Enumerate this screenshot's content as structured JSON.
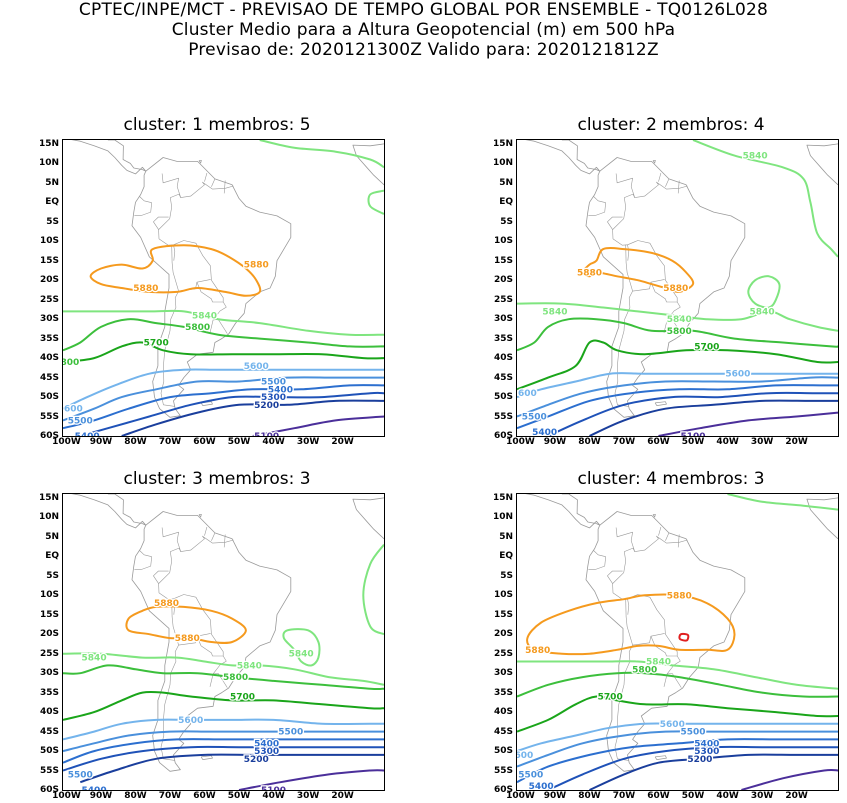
{
  "header": {
    "line1": "CPTEC/INPE/MCT - PREVISAO DE TEMPO GLOBAL POR ENSEMBLE - TQ0126L028",
    "line2": "Cluster Medio para a Altura Geopotencial (m) em 500 hPa",
    "line3": "Previsao de: 2020121300Z    Valido para: 2020121812Z"
  },
  "axes": {
    "lat_labels": [
      "15N",
      "10N",
      "5N",
      "EQ",
      "5S",
      "10S",
      "15S",
      "20S",
      "25S",
      "30S",
      "35S",
      "40S",
      "45S",
      "50S",
      "55S",
      "60S"
    ],
    "lon_labels": [
      "100W",
      "90W",
      "80W",
      "70W",
      "60W",
      "50W",
      "40W",
      "30W",
      "20W"
    ]
  },
  "colors": {
    "c5880": "#f59a1e",
    "c5840": "#7fe57f",
    "c5800": "#3cbf3c",
    "c5700": "#1aa51a",
    "c5600": "#74b4ec",
    "c5500": "#4a90dc",
    "c5400": "#2c6fcf",
    "c5300": "#1f52b8",
    "c5200": "#1a3e9c",
    "c5100": "#4b2f9a",
    "c5920": "#e02020",
    "land": "#9a9a9a"
  },
  "panels": [
    {
      "title": "cluster:  1   membros:  5",
      "labels": [
        {
          "text": "5880",
          "x": -45,
          "y": -16
        },
        {
          "text": "5880",
          "x": -77,
          "y": -22
        },
        {
          "text": "5840",
          "x": -60,
          "y": -29
        },
        {
          "text": "5800",
          "x": -62,
          "y": -32
        },
        {
          "text": "5700",
          "x": -74,
          "y": -36
        },
        {
          "text": "800",
          "x": -99,
          "y": -41
        },
        {
          "text": "5600",
          "x": -45,
          "y": -42
        },
        {
          "text": "5500",
          "x": -40,
          "y": -46
        },
        {
          "text": "5400",
          "x": -38,
          "y": -48
        },
        {
          "text": "5300",
          "x": -40,
          "y": -50
        },
        {
          "text": "5200",
          "x": -42,
          "y": -52
        },
        {
          "text": "600",
          "x": -98,
          "y": -53
        },
        {
          "text": "5500",
          "x": -96,
          "y": -56
        },
        {
          "text": "5400",
          "x": -94,
          "y": -60
        },
        {
          "text": "5100",
          "x": -42,
          "y": -60
        }
      ]
    },
    {
      "title": "cluster:  2   membros:  4",
      "labels": [
        {
          "text": "5840",
          "x": -32,
          "y": 12
        },
        {
          "text": "5880",
          "x": -80,
          "y": -18
        },
        {
          "text": "5880",
          "x": -55,
          "y": -22
        },
        {
          "text": "5840",
          "x": -30,
          "y": -28
        },
        {
          "text": "5840",
          "x": -90,
          "y": -28
        },
        {
          "text": "5840",
          "x": -54,
          "y": -30
        },
        {
          "text": "5800",
          "x": -54,
          "y": -33
        },
        {
          "text": "5700",
          "x": -46,
          "y": -37
        },
        {
          "text": "5600",
          "x": -37,
          "y": -44
        },
        {
          "text": "600",
          "x": -98,
          "y": -49
        },
        {
          "text": "5500",
          "x": -96,
          "y": -55
        },
        {
          "text": "5400",
          "x": -93,
          "y": -59
        },
        {
          "text": "5100",
          "x": -50,
          "y": -60
        }
      ]
    },
    {
      "title": "cluster:  3   membros:  3",
      "labels": [
        {
          "text": "5880",
          "x": -71,
          "y": -12
        },
        {
          "text": "5880",
          "x": -65,
          "y": -21
        },
        {
          "text": "5840",
          "x": -32,
          "y": -25
        },
        {
          "text": "5840",
          "x": -92,
          "y": -26
        },
        {
          "text": "5840",
          "x": -47,
          "y": -28
        },
        {
          "text": "5800",
          "x": -51,
          "y": -31
        },
        {
          "text": "5700",
          "x": -49,
          "y": -36
        },
        {
          "text": "5600",
          "x": -64,
          "y": -42
        },
        {
          "text": "5500",
          "x": -35,
          "y": -45
        },
        {
          "text": "5400",
          "x": -42,
          "y": -48
        },
        {
          "text": "5300",
          "x": -42,
          "y": -50
        },
        {
          "text": "5200",
          "x": -45,
          "y": -52
        },
        {
          "text": "5500",
          "x": -96,
          "y": -56
        },
        {
          "text": "5400",
          "x": -92,
          "y": -60
        },
        {
          "text": "5100",
          "x": -40,
          "y": -60
        }
      ]
    },
    {
      "title": "cluster:  4   membros:  3",
      "labels": [
        {
          "text": "5880",
          "x": -54,
          "y": -10
        },
        {
          "text": "5880",
          "x": -95,
          "y": -24
        },
        {
          "text": "5840",
          "x": -60,
          "y": -27
        },
        {
          "text": "5800",
          "x": -64,
          "y": -29
        },
        {
          "text": "5700",
          "x": -74,
          "y": -36
        },
        {
          "text": "5600",
          "x": -56,
          "y": -43
        },
        {
          "text": "5500",
          "x": -50,
          "y": -45
        },
        {
          "text": "5400",
          "x": -46,
          "y": -48
        },
        {
          "text": "5300",
          "x": -46,
          "y": -50
        },
        {
          "text": "5200",
          "x": -48,
          "y": -52
        },
        {
          "text": "600",
          "x": -99,
          "y": -51
        },
        {
          "text": "5500",
          "x": -97,
          "y": -56
        },
        {
          "text": "5400",
          "x": -94,
          "y": -59
        }
      ]
    }
  ]
}
